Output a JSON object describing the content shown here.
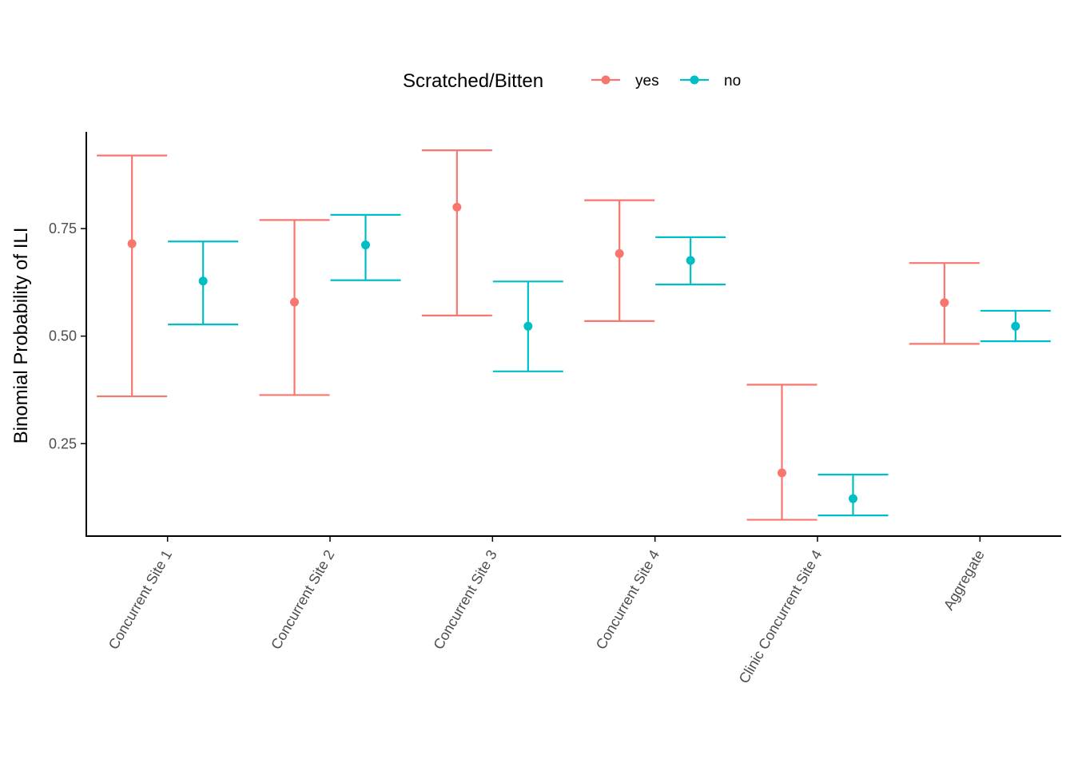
{
  "chart_data": {
    "type": "errorbar",
    "title": "",
    "xlabel": "",
    "ylabel": "Binomial Probability of ILI",
    "ylim": [
      0.035,
      0.975
    ],
    "yticks": [
      0.25,
      0.5,
      0.75
    ],
    "ytick_labels": [
      "0.25",
      "0.50",
      "0.75"
    ],
    "grid": false,
    "legend": {
      "title": "Scratched/Bitten",
      "placement": "top",
      "entries": [
        "yes",
        "no"
      ]
    },
    "categories": [
      "Concurrent Site 1",
      "Concurrent Site 2",
      "Concurrent Site 3",
      "Concurrent Site 4",
      "Clinic Concurrent Site 4",
      "Aggregate"
    ],
    "series": [
      {
        "name": "yes",
        "color": "#F8766D",
        "estimate": [
          0.715,
          0.579,
          0.8,
          0.692,
          0.182,
          0.578
        ],
        "lower": [
          0.36,
          0.363,
          0.548,
          0.535,
          0.073,
          0.482
        ],
        "upper": [
          0.92,
          0.77,
          0.932,
          0.816,
          0.387,
          0.67
        ]
      },
      {
        "name": "no",
        "color": "#00BFC4",
        "estimate": [
          0.628,
          0.712,
          0.523,
          0.676,
          0.122,
          0.523
        ],
        "lower": [
          0.527,
          0.63,
          0.418,
          0.62,
          0.083,
          0.488
        ],
        "upper": [
          0.72,
          0.782,
          0.627,
          0.73,
          0.178,
          0.559
        ]
      }
    ]
  }
}
